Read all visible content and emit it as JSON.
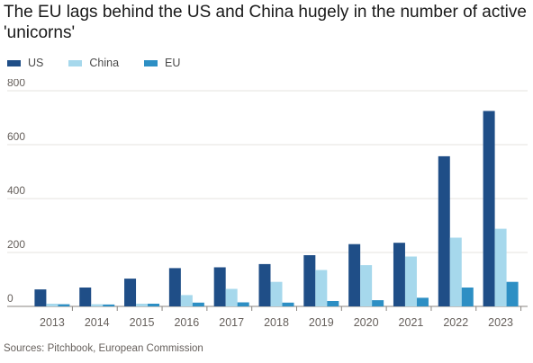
{
  "chart_data": {
    "type": "bar",
    "title": "The EU lags behind the US and China hugely in the number of active 'unicorns'",
    "categories": [
      "2013",
      "2014",
      "2015",
      "2016",
      "2017",
      "2018",
      "2019",
      "2020",
      "2021",
      "2022",
      "2023"
    ],
    "series": [
      {
        "name": "US",
        "color": "#1f4e87",
        "values": [
          63,
          70,
          103,
          142,
          145,
          157,
          190,
          231,
          236,
          557,
          725
        ]
      },
      {
        "name": "China",
        "color": "#a6d8ec",
        "values": [
          10,
          8,
          10,
          42,
          65,
          91,
          135,
          153,
          185,
          255,
          288
        ]
      },
      {
        "name": "EU",
        "color": "#2d8fc4",
        "values": [
          8,
          7,
          10,
          14,
          15,
          14,
          20,
          23,
          32,
          70,
          91
        ]
      }
    ],
    "yticks": [
      0,
      200,
      400,
      600,
      800
    ],
    "ylim": [
      0,
      800
    ],
    "grid": true,
    "legend_position": "top-left"
  },
  "source_text": "Sources: Pitchbook, European Commission"
}
